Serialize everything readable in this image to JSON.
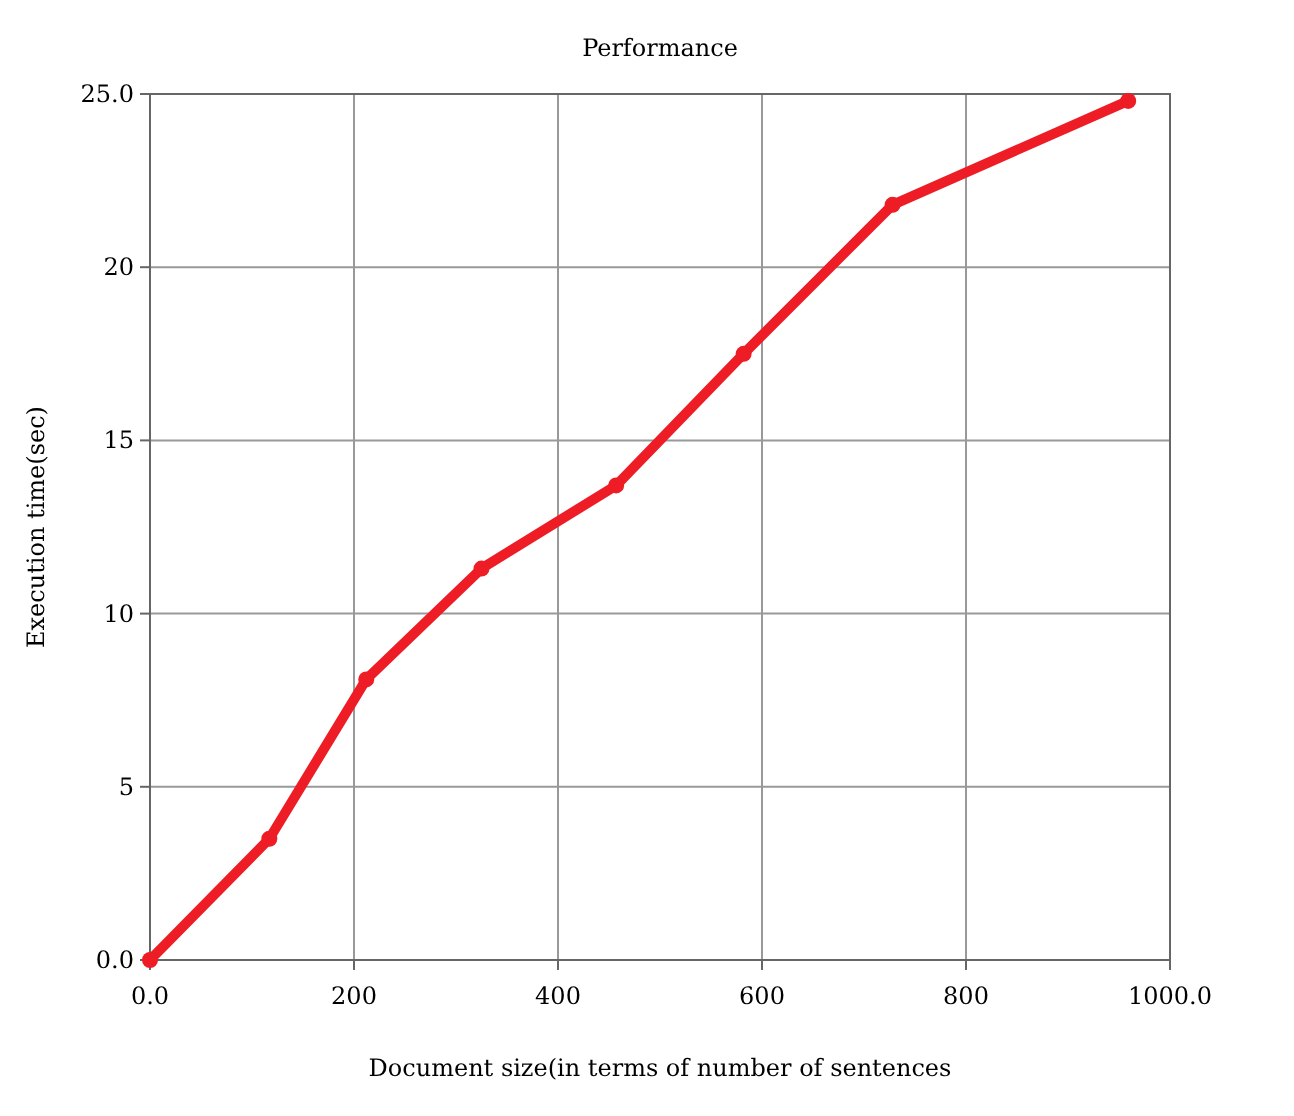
{
  "chart_data": {
    "type": "line",
    "title": "Performance",
    "xlabel": "Document size(in terms of number of sentences",
    "ylabel": "Execution time(sec)",
    "x": [
      0,
      117,
      212,
      325,
      457,
      582,
      728,
      959
    ],
    "series": [
      {
        "color": "#ee1c25",
        "values": [
          0,
          3.5,
          8.1,
          11.3,
          13.7,
          17.5,
          21.8,
          24.8
        ]
      }
    ],
    "xlim": [
      0,
      1000
    ],
    "xticks": [
      {
        "value": 0,
        "label": "0.0"
      },
      200,
      400,
      600,
      800,
      {
        "value": 1000,
        "label": "1000.0"
      }
    ],
    "ylim": [
      0,
      25
    ],
    "yticks": [
      {
        "value": 0,
        "label": "0.0"
      },
      5,
      10,
      15,
      20,
      {
        "value": 25,
        "label": "25.0"
      }
    ],
    "grid": true,
    "marker": "circle",
    "line_style": "solid"
  }
}
